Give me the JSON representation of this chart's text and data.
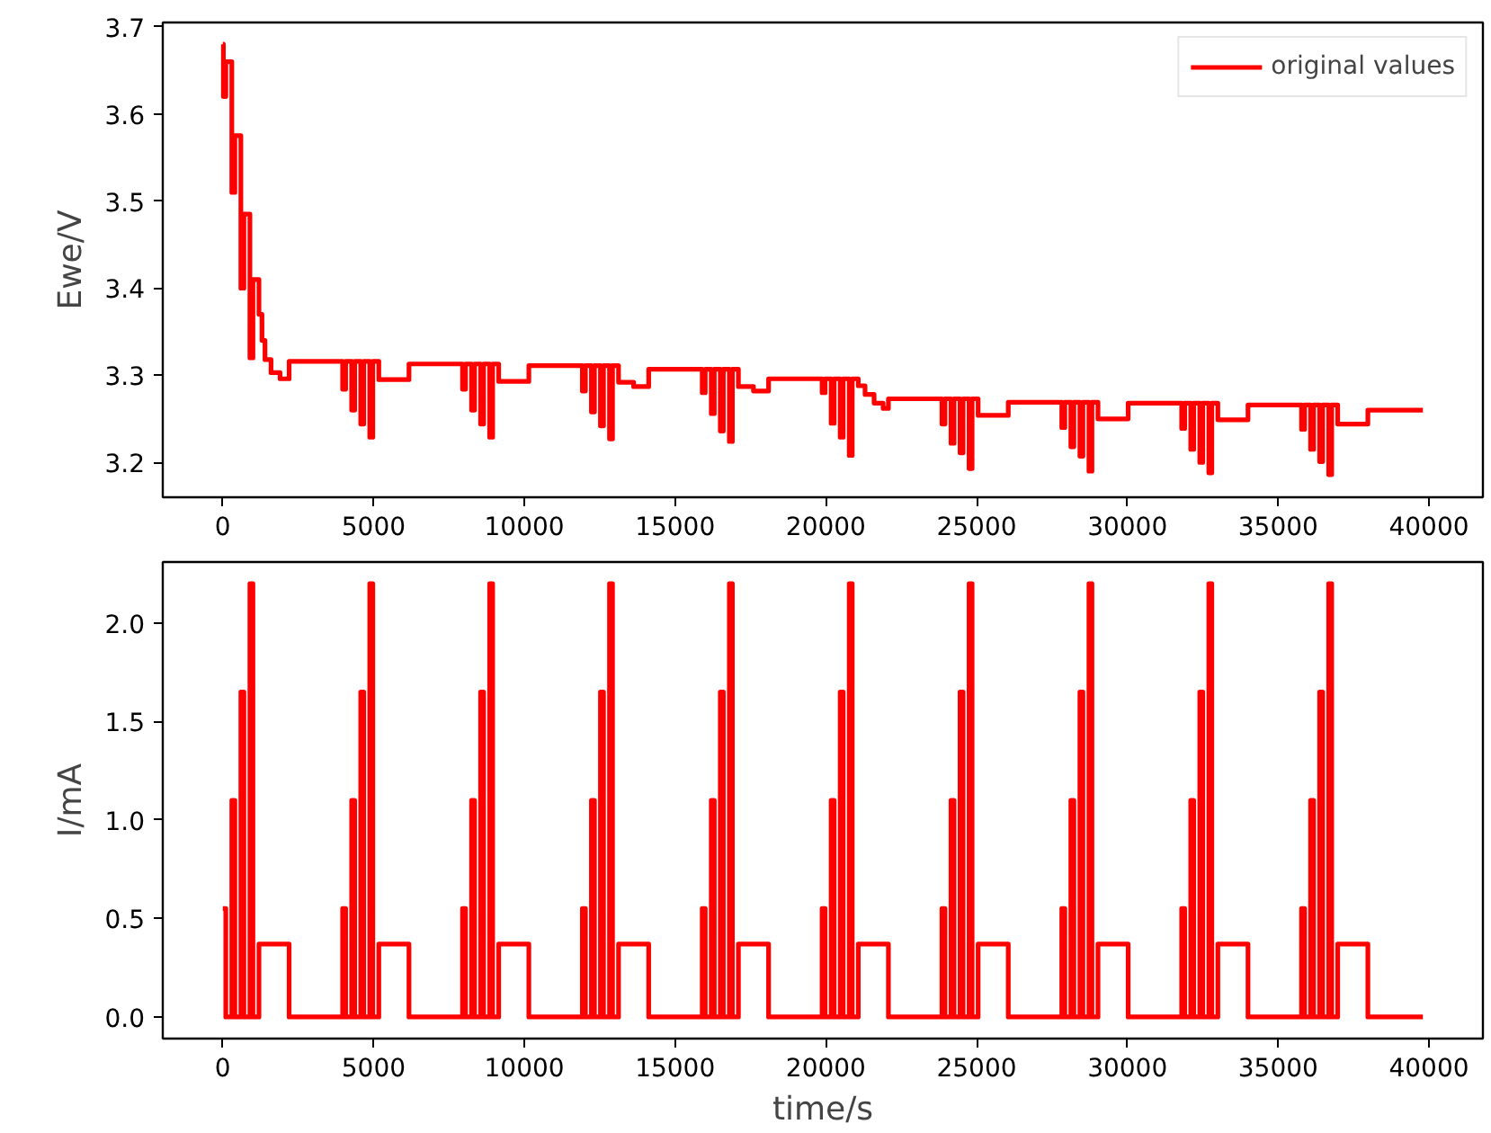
{
  "chart_data": [
    {
      "type": "step",
      "ylabel": "Ewe/V",
      "xlim": [
        -1990,
        41790
      ],
      "ylim": [
        3.16,
        3.705
      ],
      "xticks": [
        0,
        5000,
        10000,
        15000,
        20000,
        25000,
        30000,
        35000,
        40000
      ],
      "yticks": [
        3.2,
        3.3,
        3.4,
        3.5,
        3.6,
        3.7
      ],
      "grid": false,
      "legend": "top right",
      "line_style": "solid",
      "series": [
        {
          "name": "original values",
          "color": "#ff0000",
          "x": [
            0,
            20,
            100,
            300,
            400,
            600,
            700,
            900,
            1000,
            1200,
            1300,
            1400,
            1600,
            1900,
            2200,
            3975,
            4075,
            4275,
            4375,
            4575,
            4675,
            4875,
            4975,
            5175,
            6175,
            7950,
            8050,
            8250,
            8350,
            8550,
            8650,
            8850,
            8950,
            9150,
            10150,
            11925,
            12025,
            12225,
            12325,
            12525,
            12625,
            12825,
            12925,
            13125,
            13625,
            14125,
            15900,
            16000,
            16200,
            16300,
            16500,
            16600,
            16800,
            16900,
            17100,
            17600,
            18100,
            19875,
            19975,
            20175,
            20275,
            20475,
            20575,
            20775,
            20875,
            21075,
            21300,
            21600,
            21900,
            22075,
            23850,
            23950,
            24150,
            24250,
            24450,
            24550,
            24750,
            24850,
            25050,
            26050,
            27825,
            27925,
            28125,
            28225,
            28425,
            28525,
            28725,
            28825,
            29025,
            30025,
            31800,
            31900,
            32100,
            32200,
            32400,
            32500,
            32700,
            32800,
            33000,
            34000,
            35775,
            35875,
            36075,
            36175,
            36375,
            36475,
            36675,
            36775,
            36975,
            37975,
            39800
          ],
          "values": [
            3.68,
            3.62,
            3.66,
            3.51,
            3.575,
            3.4,
            3.485,
            3.32,
            3.41,
            3.37,
            3.34,
            3.318,
            3.303,
            3.296,
            3.316,
            3.284,
            3.316,
            3.26,
            3.316,
            3.244,
            3.316,
            3.229,
            3.316,
            3.295,
            3.313,
            3.284,
            3.313,
            3.26,
            3.313,
            3.244,
            3.313,
            3.229,
            3.313,
            3.293,
            3.311,
            3.282,
            3.311,
            3.258,
            3.311,
            3.242,
            3.311,
            3.227,
            3.311,
            3.292,
            3.287,
            3.307,
            3.28,
            3.307,
            3.256,
            3.307,
            3.236,
            3.307,
            3.224,
            3.307,
            3.287,
            3.282,
            3.296,
            3.28,
            3.296,
            3.245,
            3.296,
            3.229,
            3.296,
            3.208,
            3.296,
            3.288,
            3.278,
            3.268,
            3.262,
            3.273,
            3.244,
            3.273,
            3.222,
            3.273,
            3.211,
            3.273,
            3.193,
            3.273,
            3.254,
            3.269,
            3.24,
            3.269,
            3.218,
            3.269,
            3.207,
            3.269,
            3.19,
            3.269,
            3.25,
            3.268,
            3.239,
            3.268,
            3.215,
            3.268,
            3.2,
            3.268,
            3.188,
            3.268,
            3.249,
            3.266,
            3.238,
            3.266,
            3.215,
            3.266,
            3.201,
            3.266,
            3.186,
            3.266,
            3.244,
            3.26,
            3.26
          ]
        }
      ]
    },
    {
      "type": "step",
      "xlabel": "time/s",
      "ylabel": "I/mA",
      "xlim": [
        -1990,
        41790
      ],
      "ylim": [
        -0.11,
        2.31
      ],
      "xticks": [
        0,
        5000,
        10000,
        15000,
        20000,
        25000,
        30000,
        35000,
        40000
      ],
      "yticks": [
        {
          "value": 0,
          "label": "0.0"
        },
        0.5,
        {
          "value": 1,
          "label": "1.0"
        },
        1.5,
        {
          "value": 2,
          "label": "2.0"
        }
      ],
      "grid": false,
      "line_style": "solid",
      "series": [
        {
          "color": "#ff0000",
          "x": [
            0,
            100,
            300,
            400,
            600,
            700,
            900,
            1000,
            1200,
            2200,
            3975,
            4075,
            4275,
            4375,
            4575,
            4675,
            4875,
            4975,
            5175,
            6175,
            7950,
            8050,
            8250,
            8350,
            8550,
            8650,
            8850,
            8950,
            9150,
            10150,
            11925,
            12025,
            12225,
            12325,
            12525,
            12625,
            12825,
            12925,
            13125,
            14125,
            15900,
            16000,
            16200,
            16300,
            16500,
            16600,
            16800,
            16900,
            17100,
            18100,
            19875,
            19975,
            20175,
            20275,
            20475,
            20575,
            20775,
            20875,
            21075,
            22075,
            23850,
            23950,
            24150,
            24250,
            24450,
            24550,
            24750,
            24850,
            25050,
            26050,
            27825,
            27925,
            28125,
            28225,
            28425,
            28525,
            28725,
            28825,
            29025,
            30025,
            31800,
            31900,
            32100,
            32200,
            32400,
            32500,
            32700,
            32800,
            33000,
            34000,
            35775,
            35875,
            36075,
            36175,
            36375,
            36475,
            36675,
            36775,
            36975,
            37975,
            39800
          ],
          "values": [
            0.55,
            0,
            1.1,
            0,
            1.65,
            0,
            2.2,
            0,
            0.37,
            0,
            0.55,
            0,
            1.1,
            0,
            1.65,
            0,
            2.2,
            0,
            0.37,
            0,
            0.55,
            0,
            1.1,
            0,
            1.65,
            0,
            2.2,
            0,
            0.37,
            0,
            0.55,
            0,
            1.1,
            0,
            1.65,
            0,
            2.2,
            0,
            0.37,
            0,
            0.55,
            0,
            1.1,
            0,
            1.65,
            0,
            2.2,
            0,
            0.37,
            0,
            0.55,
            0,
            1.1,
            0,
            1.65,
            0,
            2.2,
            0,
            0.37,
            0,
            0.55,
            0,
            1.1,
            0,
            1.65,
            0,
            2.2,
            0,
            0.37,
            0,
            0.55,
            0,
            1.1,
            0,
            1.65,
            0,
            2.2,
            0,
            0.37,
            0,
            0.55,
            0,
            1.1,
            0,
            1.65,
            0,
            2.2,
            0,
            0.37,
            0,
            0.55,
            0,
            1.1,
            0,
            1.65,
            0,
            2.2,
            0,
            0.37,
            0,
            0
          ]
        }
      ]
    }
  ]
}
